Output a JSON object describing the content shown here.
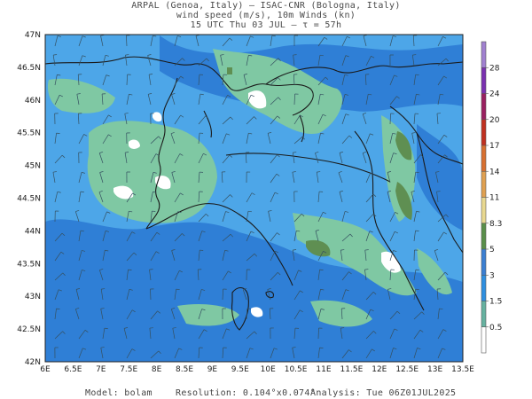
{
  "header": {
    "line1": "ARPAL (Genoa, Italy)  —  ISAC-CNR (Bologna, Italy)",
    "line2": "wind speed (m/s), 10m Winds (kn)",
    "line3": "15 UTC Thu 03 JUL  —  τ = 57h"
  },
  "axes": {
    "lat_labels": [
      "47N",
      "46.5N",
      "46N",
      "45.5N",
      "45N",
      "44.5N",
      "44N",
      "43.5N",
      "43N",
      "42.5N",
      "42N"
    ],
    "lon_labels": [
      "6E",
      "6.5E",
      "7E",
      "7.5E",
      "8E",
      "8.5E",
      "9E",
      "9.5E",
      "10E",
      "10.5E",
      "11E",
      "11.5E",
      "12E",
      "12.5E",
      "13E",
      "13.5E"
    ]
  },
  "colorbar": {
    "levels": [
      "0.5",
      "1.5",
      "3",
      "5",
      "8.3",
      "11",
      "14",
      "17",
      "20",
      "24",
      "28"
    ],
    "colors": {
      "c0": "#ffffff",
      "c1": "#66b2a0",
      "c2": "#2e8fe0",
      "c3": "#3b7fd2",
      "c4": "#5a8f4a",
      "c5": "#e8d890",
      "c6": "#e0a050",
      "c7": "#d87030",
      "c8": "#c03020",
      "c9": "#9a2060",
      "c10": "#7a30b0",
      "c11": "#a080d0"
    }
  },
  "map_colors": {
    "light_blue": "#4da6e8",
    "mid_blue": "#2f7fd6",
    "teal": "#7fc8a3",
    "olive": "#5f8f52",
    "white": "#ffffff",
    "border": "#1a1a1a",
    "barb": "#355060"
  },
  "footer": {
    "model": "Model: bolam",
    "resolution": "Resolution: 0.104°x0.074°",
    "analysis": "Analysis: Tue 06Z01JUL2025"
  }
}
